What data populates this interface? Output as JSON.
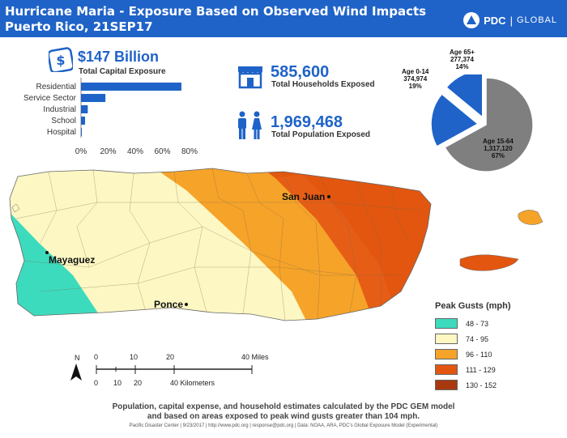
{
  "header": {
    "title_line1": "Hurricane Maria - Exposure Based on Observed Wind Impacts",
    "title_line2": "Puerto Rico, 21SEP17",
    "logo_brand": "PDC",
    "logo_sep": "|",
    "logo_global": "GLOBAL"
  },
  "capital": {
    "value": "$147 Billion",
    "label": "Total Capital Exposure"
  },
  "chart_data": {
    "type": "bar",
    "orientation": "horizontal",
    "categories": [
      "Residential",
      "Service Sector",
      "Industrial",
      "School",
      "Hospital"
    ],
    "values": [
      74,
      18,
      5,
      3,
      0.5
    ],
    "unit": "%",
    "xlim": [
      0,
      80
    ],
    "xticks": [
      "0%",
      "20%",
      "40%",
      "60%",
      "80%"
    ],
    "bar_color": "#1f63c8"
  },
  "households": {
    "value": "585,600",
    "label": "Total Households Exposed"
  },
  "population": {
    "value": "1,969,468",
    "label": "Total Population Exposed"
  },
  "pie": {
    "slices": [
      {
        "group": "Age 65+",
        "count": "277,374",
        "pct": "14%",
        "fraction": 0.14,
        "color": "#1f63c8"
      },
      {
        "group": "Age 0-14",
        "count": "374,974",
        "pct": "19%",
        "fraction": 0.19,
        "color": "#1f63c8"
      },
      {
        "group": "Age 15-64",
        "count": "1,317,120",
        "pct": "67%",
        "fraction": 0.67,
        "color": "#7f7f7f"
      }
    ]
  },
  "map": {
    "cities": [
      "San Juan",
      "Mayaguez",
      "Ponce"
    ]
  },
  "legend": {
    "title": "Peak Gusts (mph)",
    "items": [
      {
        "label": "48 - 73",
        "color": "#3ddbbd"
      },
      {
        "label": "74 - 95",
        "color": "#fdf7c3"
      },
      {
        "label": "96 - 110",
        "color": "#f6a329"
      },
      {
        "label": "111 - 129",
        "color": "#e2560f"
      },
      {
        "label": "130 - 152",
        "color": "#a8390e"
      }
    ]
  },
  "scalebar": {
    "north": "N",
    "miles_ticks": [
      "0",
      "10",
      "20",
      "40 Miles"
    ],
    "km_ticks": [
      "0",
      "10",
      "20",
      "40 Kilometers"
    ]
  },
  "footnote": {
    "line1": "Population, capital expense, and household estimates calculated by the PDC GEM model",
    "line2": "and based on areas exposed to peak wind gusts greater than 104 mph."
  },
  "credits": "Pacific Disaster Center | 9/23/2017 | http://www.pdc.org | response@pdc.org | Data: NOAA, ARA, PDC's Global Exposure Model (Experimental)"
}
